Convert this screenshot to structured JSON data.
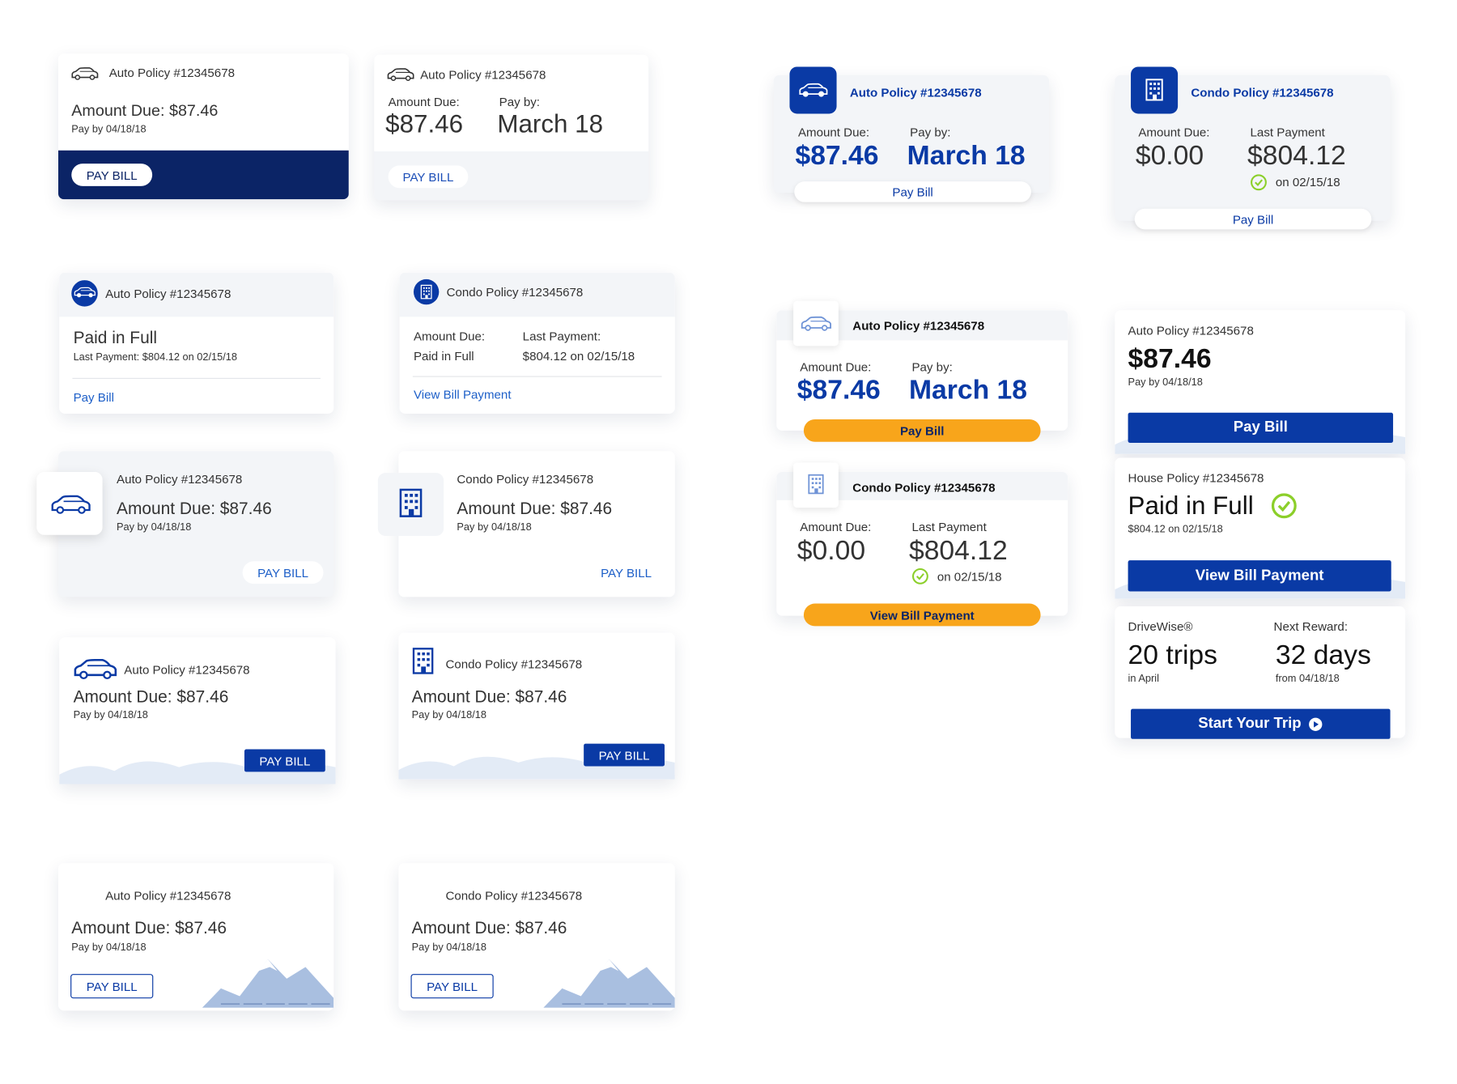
{
  "cards": [
    {
      "policy": "Auto Policy #12345678",
      "amount": "Amount Due: $87.46",
      "due": "Pay by 04/18/18",
      "button": "PAY BILL"
    },
    {
      "policy": "Auto Policy #12345678",
      "label1": "Amount Due:",
      "value1": "$87.46",
      "label2": "Pay by:",
      "value2": "March 18",
      "button": "PAY BILL"
    },
    {
      "policy": "Auto Policy #12345678",
      "label1": "Amount Due:",
      "value1": "$87.46",
      "label2": "Pay by:",
      "value2": "March 18",
      "button": "Pay Bill"
    },
    {
      "policy": "Condo Policy #12345678",
      "label1": "Amount Due:",
      "value1": "$0.00",
      "label2": "Last Payment",
      "value2": "$804.12",
      "note": "on 02/15/18",
      "button": "Pay Bill"
    },
    {
      "policy": "Auto Policy #12345678",
      "status": "Paid in Full",
      "detail": "Last Payment: $804.12 on 02/15/18",
      "button": "Pay Bill"
    },
    {
      "policy": "Condo Policy #12345678",
      "label1": "Amount Due:",
      "value1": "Paid in Full",
      "label2": "Last Payment:",
      "value2": "$804.12 on 02/15/18",
      "button": "View Bill Payment"
    },
    {
      "policy": "Auto Policy #12345678",
      "amount": "Amount Due: $87.46",
      "due": "Pay by 04/18/18",
      "button": "PAY BILL"
    },
    {
      "policy": "Condo Policy #12345678",
      "amount": "Amount Due: $87.46",
      "due": "Pay by 04/18/18",
      "button": "PAY BILL"
    },
    {
      "policy": "Auto Policy #12345678",
      "amount": "Amount Due: $87.46",
      "due": "Pay by 04/18/18",
      "button": "PAY BILL"
    },
    {
      "policy": "Condo Policy #12345678",
      "amount": "Amount Due: $87.46",
      "due": "Pay by 04/18/18",
      "button": "PAY BILL"
    },
    {
      "policy": "Auto Policy #12345678",
      "amount": "Amount Due: $87.46",
      "due": "Pay by 04/18/18",
      "button": "PAY BILL"
    },
    {
      "policy": "Condo Policy #12345678",
      "amount": "Amount Due: $87.46",
      "due": "Pay by 04/18/18",
      "button": "PAY BILL"
    },
    {
      "policy": "Auto Policy #12345678",
      "label1": "Amount Due:",
      "value1": "$87.46",
      "label2": "Pay by:",
      "value2": "March 18",
      "button": "Pay Bill"
    },
    {
      "policy": "Condo Policy #12345678",
      "label1": "Amount Due:",
      "value1": "$0.00",
      "label2": "Last Payment",
      "value2": "$804.12",
      "note": "on 02/15/18",
      "button": "View Bill Payment"
    },
    {
      "policy": "Auto Policy #12345678",
      "amount": "$87.46",
      "due": "Pay by 04/18/18",
      "button": "Pay Bill"
    },
    {
      "policy": "House Policy #12345678",
      "status": "Paid in Full",
      "detail": "$804.12 on 02/15/18",
      "button": "View Bill Payment"
    },
    {
      "label1": "DriveWise®",
      "value1": "20 trips",
      "note1": "in April",
      "label2": "Next Reward:",
      "value2": "32 days",
      "note2": "from 04/18/18",
      "button": "Start Your Trip"
    }
  ]
}
